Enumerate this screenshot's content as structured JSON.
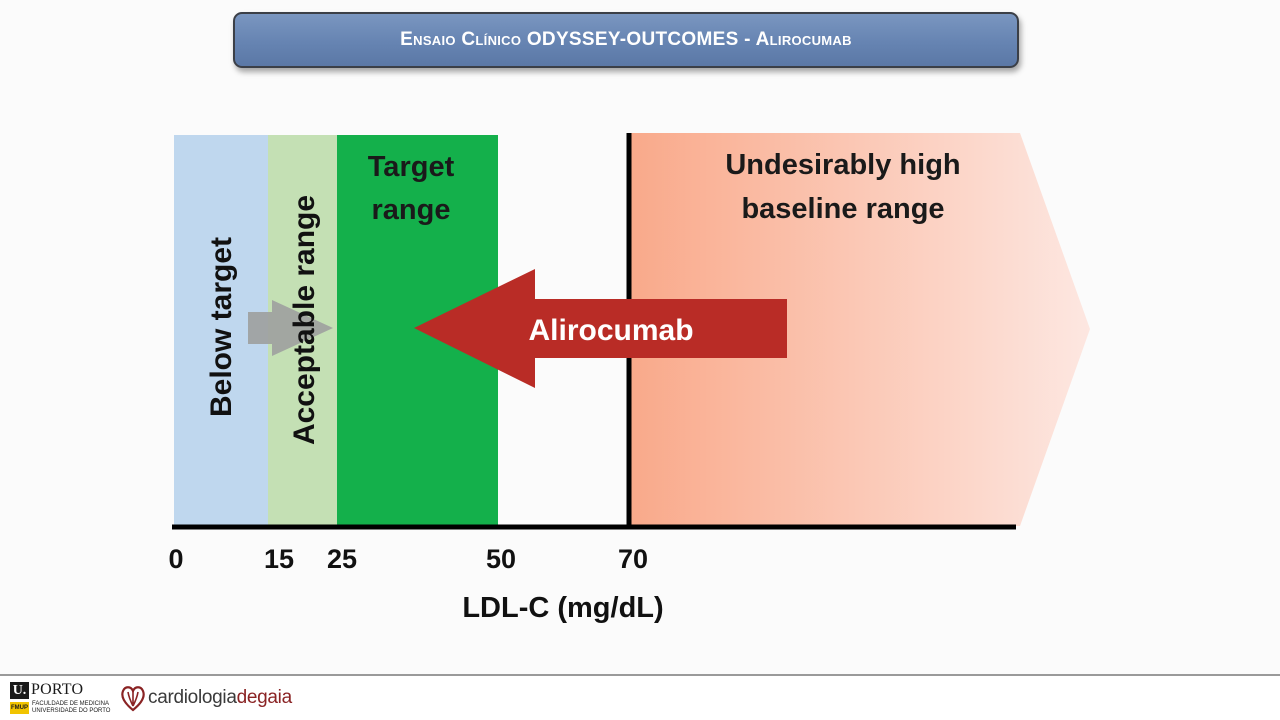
{
  "header": {
    "title": "Ensaio Clínico ODYSSEY-OUTCOMES - Alirocumab"
  },
  "diagram": {
    "axis_label": "LDL-C (mg/dL)",
    "ticks": [
      "0",
      "15",
      "25",
      "50",
      "70"
    ],
    "zones": {
      "below_target": "Below target",
      "acceptable": "Acceptable range",
      "target_line1": "Target",
      "target_line2": "range",
      "high_line1": "Undesirably high",
      "high_line2": "baseline range"
    },
    "arrow_label": "Alirocumab",
    "colors": {
      "below_target": "#bfd7ee",
      "acceptable": "#c4e0b4",
      "target": "#14b04b",
      "high_start": "#f9a98a",
      "high_end": "#fde3dc",
      "arrow": "#b92c26",
      "grey_arrow": "#9ea1a0"
    }
  },
  "footer": {
    "uporto_mark": "U.",
    "uporto_word": "PORTO",
    "fmup_tag": "FMUP",
    "fmup_line1": "FACULDADE DE MEDICINA",
    "fmup_line2": "UNIVERSIDADE DO PORTO",
    "cardio_part1": "cardiologia",
    "cardio_part2": "degaia"
  }
}
